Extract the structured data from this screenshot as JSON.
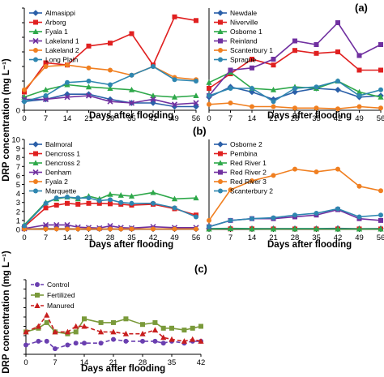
{
  "panel_labels": [
    "(a)",
    "(b)",
    "(c)"
  ],
  "ylabel": "DRP concentration (mg L⁻¹)",
  "xlabel": "Days after flooding",
  "chart_data": [
    {
      "type": "line",
      "panel": "(a)",
      "side": "left",
      "x": [
        0,
        7,
        14,
        21,
        28,
        35,
        42,
        49,
        56
      ],
      "xlim": [
        0,
        56
      ],
      "ylim": [
        0,
        1.4
      ],
      "yticks": [
        0,
        0.2,
        0.4,
        0.6,
        0.8,
        1.0,
        1.2,
        1.4
      ],
      "ytick_labels": [
        "0",
        "",
        "",
        "",
        "",
        "",
        "",
        ""
      ],
      "legend_position": "top-left",
      "series": [
        {
          "name": "Almasippi",
          "color": "#2a5fa8",
          "marker": "diamond",
          "values": [
            0.12,
            0.15,
            0.22,
            0.22,
            0.15,
            0.1,
            0.1,
            0.05,
            0.05
          ]
        },
        {
          "name": "Arborg",
          "color": "#e02020",
          "marker": "square",
          "values": [
            0.25,
            0.65,
            0.62,
            0.88,
            0.92,
            1.05,
            0.62,
            1.28,
            1.23
          ]
        },
        {
          "name": "Fyala 1",
          "color": "#2ea84a",
          "marker": "triangle",
          "values": [
            0.18,
            0.28,
            0.35,
            0.32,
            0.3,
            0.28,
            0.2,
            0.18,
            0.2
          ]
        },
        {
          "name": "Lakeland 1",
          "color": "#7030a0",
          "marker": "x",
          "values": [
            0.15,
            0.15,
            0.18,
            0.2,
            0.12,
            0.1,
            0.15,
            0.08,
            0.1
          ]
        },
        {
          "name": "Lakeland 2",
          "color": "#f07f20",
          "marker": "circle",
          "values": [
            0.28,
            0.6,
            0.62,
            0.58,
            0.55,
            0.48,
            0.6,
            0.45,
            0.42
          ]
        },
        {
          "name": "Long Plain",
          "color": "#2e86b0",
          "marker": "circle",
          "values": [
            0.12,
            0.2,
            0.38,
            0.4,
            0.35,
            0.48,
            0.6,
            0.42,
            0.4
          ]
        }
      ]
    },
    {
      "type": "line",
      "panel": "(a)",
      "side": "right",
      "x": [
        0,
        7,
        14,
        21,
        28,
        35,
        42,
        49,
        56
      ],
      "xlim": [
        0,
        56
      ],
      "ylim": [
        0,
        1.4
      ],
      "legend_position": "top-left",
      "series": [
        {
          "name": "Newdale",
          "color": "#2a5fa8",
          "marker": "diamond",
          "values": [
            0.18,
            0.32,
            0.25,
            0.15,
            0.25,
            0.3,
            0.28,
            0.18,
            0.2
          ]
        },
        {
          "name": "Niverville",
          "color": "#e02020",
          "marker": "square",
          "values": [
            0.3,
            0.5,
            0.7,
            0.62,
            0.82,
            0.78,
            0.8,
            0.55,
            0.55
          ]
        },
        {
          "name": "Osborne 1",
          "color": "#2ea84a",
          "marker": "triangle",
          "values": [
            0.38,
            0.52,
            0.3,
            0.28,
            0.32,
            0.3,
            0.4,
            0.25,
            0.18
          ]
        },
        {
          "name": "Reinland",
          "color": "#7030a0",
          "marker": "square",
          "values": [
            0.2,
            0.55,
            0.58,
            0.7,
            0.95,
            0.9,
            1.2,
            0.75,
            0.9
          ]
        },
        {
          "name": "Scanterbury 1",
          "color": "#f07f20",
          "marker": "circle",
          "values": [
            0.08,
            0.1,
            0.05,
            0.05,
            0.03,
            0.03,
            0.02,
            0.05,
            0.03
          ]
        },
        {
          "name": "Sprague",
          "color": "#2e86b0",
          "marker": "circle",
          "values": [
            0.2,
            0.3,
            0.3,
            0.12,
            0.3,
            0.32,
            0.4,
            0.2,
            0.28
          ]
        }
      ]
    },
    {
      "type": "line",
      "panel": "(b)",
      "side": "left",
      "x": [
        0,
        7,
        10.5,
        14,
        17.5,
        21,
        24.5,
        28,
        31.5,
        35,
        42,
        49,
        56
      ],
      "xticks": [
        0,
        7,
        14,
        21,
        28,
        35,
        42,
        49,
        56
      ],
      "xlim": [
        0,
        56
      ],
      "ylim": [
        0,
        10
      ],
      "yticks": [
        0,
        1,
        2,
        3,
        4,
        5,
        6,
        7,
        8,
        9,
        10
      ],
      "ytick_labels": [
        "0",
        "1",
        "2",
        "3",
        "4",
        "5",
        "6",
        "7",
        "8",
        "9",
        "10"
      ],
      "legend_position": "top-left",
      "series": [
        {
          "name": "Balmoral",
          "color": "#2a5fa8",
          "marker": "diamond",
          "values": [
            0.05,
            0.1,
            0.08,
            0.08,
            0.06,
            0.08,
            0.06,
            0.05,
            0.06,
            0.06,
            0.05,
            0.06,
            0.05
          ]
        },
        {
          "name": "Dencross 1",
          "color": "#e02020",
          "marker": "square",
          "values": [
            0.3,
            2.4,
            2.7,
            2.9,
            2.8,
            2.9,
            2.9,
            2.85,
            2.8,
            2.7,
            2.8,
            2.3,
            1.6
          ]
        },
        {
          "name": "Dencross 2",
          "color": "#2ea84a",
          "marker": "triangle",
          "values": [
            0.5,
            3.0,
            3.4,
            3.6,
            3.4,
            3.7,
            3.4,
            3.9,
            3.8,
            3.7,
            4.1,
            3.4,
            3.5
          ]
        },
        {
          "name": "Denham",
          "color": "#7030a0",
          "marker": "x",
          "values": [
            0.1,
            0.5,
            0.5,
            0.5,
            0.25,
            0.2,
            0.15,
            0.4,
            0.2,
            0.15,
            0.3,
            0.2,
            0.2
          ]
        },
        {
          "name": "Fyala 2",
          "color": "#f07f20",
          "marker": "circle",
          "values": [
            0.05,
            0.05,
            0.06,
            0.05,
            0.05,
            0.06,
            0.05,
            0.05,
            0.05,
            0.05,
            0.05,
            0.05,
            0.05
          ]
        },
        {
          "name": "Marquette",
          "color": "#2e86b0",
          "marker": "circle",
          "values": [
            0.4,
            2.9,
            3.5,
            3.6,
            3.5,
            3.5,
            3.2,
            3.3,
            3.0,
            2.9,
            2.9,
            2.4,
            1.4
          ]
        }
      ]
    },
    {
      "type": "line",
      "panel": "(b)",
      "side": "right",
      "x": [
        0,
        7,
        14,
        21,
        28,
        35,
        42,
        49,
        56
      ],
      "xlim": [
        0,
        56
      ],
      "ylim": [
        0,
        10
      ],
      "legend_position": "top-left",
      "series": [
        {
          "name": "Osborne 2",
          "color": "#2a5fa8",
          "marker": "diamond",
          "values": [
            0.1,
            0.12,
            0.1,
            0.1,
            0.1,
            0.1,
            0.12,
            0.08,
            0.1
          ]
        },
        {
          "name": "Pembina",
          "color": "#e02020",
          "marker": "square",
          "values": [
            0.05,
            0.06,
            0.06,
            0.05,
            0.05,
            0.05,
            0.05,
            0.05,
            0.05
          ]
        },
        {
          "name": "Red River 1",
          "color": "#2ea84a",
          "marker": "triangle",
          "values": [
            0.05,
            0.08,
            0.06,
            0.05,
            0.06,
            0.06,
            0.05,
            0.05,
            0.05
          ]
        },
        {
          "name": "Red River 2",
          "color": "#7030a0",
          "marker": "square",
          "values": [
            0.3,
            1.0,
            1.2,
            1.2,
            1.4,
            1.6,
            2.2,
            1.2,
            1.0
          ]
        },
        {
          "name": "Red River 3",
          "color": "#f07f20",
          "marker": "circle",
          "values": [
            1.0,
            4.4,
            5.4,
            6.0,
            6.7,
            6.4,
            6.7,
            4.8,
            4.3
          ]
        },
        {
          "name": "Scanterbury 2",
          "color": "#2e86b0",
          "marker": "circle",
          "values": [
            0.3,
            1.0,
            1.2,
            1.3,
            1.6,
            1.8,
            2.3,
            1.4,
            1.6
          ]
        }
      ]
    },
    {
      "type": "line",
      "panel": "(c)",
      "x": [
        0,
        3,
        5,
        7,
        10,
        12,
        14,
        18,
        21,
        24,
        28,
        31,
        33,
        35,
        38,
        40,
        42
      ],
      "xlim": [
        0,
        42
      ],
      "ylim": [
        0,
        0.4
      ],
      "xticks": [
        0,
        7,
        14,
        21,
        28,
        35,
        42
      ],
      "yticks": [
        0,
        0.05,
        0.1,
        0.15,
        0.2,
        0.25,
        0.3,
        0.35,
        0.4
      ],
      "ytick_labels": [
        "",
        "",
        "",
        "",
        "",
        "",
        "",
        "",
        ""
      ],
      "legend_position": "top-left",
      "series": [
        {
          "name": "Control",
          "color": "#6a3fb0",
          "marker": "circle",
          "dash": "dashed",
          "values": [
            0.05,
            0.07,
            0.07,
            0.03,
            0.05,
            0.06,
            0.06,
            0.06,
            0.08,
            0.07,
            0.07,
            0.07,
            0.06,
            0.07,
            0.06,
            0.07,
            0.07
          ]
        },
        {
          "name": "Fertilized",
          "color": "#7a9a3a",
          "marker": "square",
          "dash": "solid",
          "values": [
            0.12,
            0.14,
            0.17,
            0.12,
            0.11,
            0.12,
            0.19,
            0.17,
            0.17,
            0.19,
            0.16,
            0.17,
            0.14,
            0.14,
            0.13,
            0.14,
            0.15
          ]
        },
        {
          "name": "Manured",
          "color": "#c81e1e",
          "marker": "triangle",
          "dash": "dashed",
          "values": [
            0.12,
            0.15,
            0.21,
            0.12,
            0.12,
            0.15,
            0.15,
            0.12,
            0.12,
            0.11,
            0.11,
            0.13,
            0.09,
            0.08,
            0.07,
            0.08,
            0.07
          ]
        }
      ]
    }
  ]
}
